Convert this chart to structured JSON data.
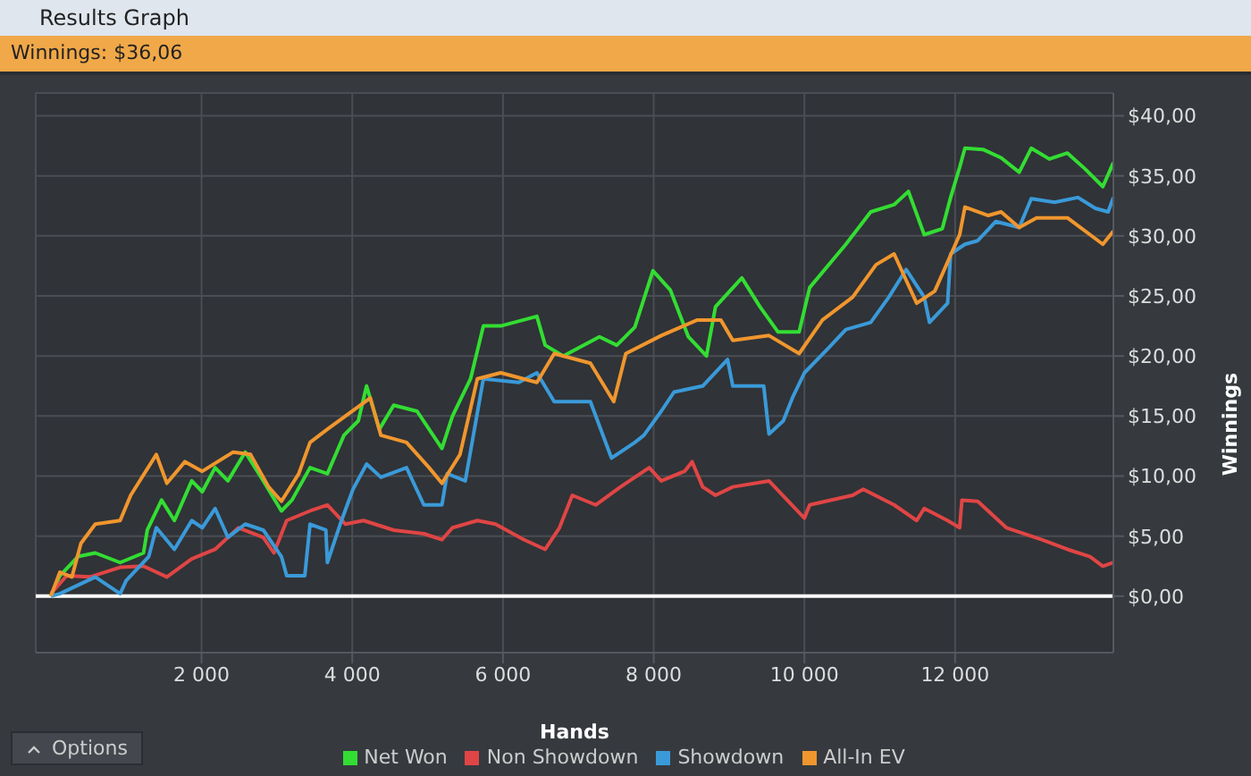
{
  "chart_data": {
    "type": "line",
    "title": "Results Graph",
    "subtitle": "Winnings: $36,06",
    "xlabel": "Hands",
    "ylabel": "Winnings",
    "annotations": [
      "Options"
    ],
    "xlim": [
      -200,
      14100
    ],
    "xticks": [
      {
        "value": 2000,
        "label": "2 000"
      },
      {
        "value": 4000,
        "label": "4 000"
      },
      {
        "value": 6000,
        "label": "6 000"
      },
      {
        "value": 8000,
        "label": "8 000"
      },
      {
        "value": 10000,
        "label": "10 000"
      },
      {
        "value": 12000,
        "label": "12 000"
      }
    ],
    "ylim": [
      -4.7,
      41.9
    ],
    "yticks": [
      {
        "value": 0,
        "label": "$0,00"
      },
      {
        "value": 5,
        "label": "$5,00"
      },
      {
        "value": 10,
        "label": "$10,00"
      },
      {
        "value": 15,
        "label": "$15,00"
      },
      {
        "value": 20,
        "label": "$20,00"
      },
      {
        "value": 25,
        "label": "$25,00"
      },
      {
        "value": 30,
        "label": "$30,00"
      },
      {
        "value": 35,
        "label": "$35,00"
      },
      {
        "value": 40,
        "label": "$40,00"
      }
    ],
    "grid": true,
    "legend": "bottom",
    "marker": "none",
    "line_style": "solid",
    "ref_lines": [
      {
        "axis": "y",
        "value": 0,
        "color": "#ffffff"
      }
    ],
    "series": [
      {
        "name": "Net Won",
        "color": "#33dd33",
        "x": [
          0,
          120,
          360,
          590,
          920,
          1230,
          1280,
          1470,
          1640,
          1870,
          2010,
          2180,
          2350,
          2580,
          2820,
          3060,
          3200,
          3440,
          3670,
          3890,
          4080,
          4190,
          4360,
          4550,
          4860,
          5190,
          5330,
          5570,
          5740,
          5970,
          6450,
          6560,
          6800,
          7280,
          7510,
          7750,
          7990,
          8220,
          8460,
          8700,
          8820,
          9170,
          9410,
          9650,
          9930,
          10070,
          10550,
          10880,
          11190,
          11380,
          11590,
          11830,
          11940,
          12060,
          12130,
          12370,
          12610,
          12850,
          13010,
          13250,
          13490,
          13720,
          13960,
          14100
        ],
        "values": [
          0,
          1.7,
          3.3,
          3.6,
          2.8,
          3.6,
          5.5,
          8.0,
          6.3,
          9.6,
          8.7,
          10.7,
          9.6,
          12.0,
          9.6,
          7.1,
          8.0,
          10.7,
          10.2,
          13.4,
          14.6,
          17.5,
          13.9,
          15.9,
          15.4,
          12.3,
          15.0,
          18.1,
          22.5,
          22.5,
          23.3,
          20.9,
          20.0,
          21.6,
          20.9,
          22.4,
          27.1,
          25.5,
          21.6,
          20.0,
          24.1,
          26.5,
          24.1,
          22.0,
          22.0,
          25.7,
          29.3,
          32.0,
          32.6,
          33.7,
          30.1,
          30.6,
          33.2,
          35.7,
          37.3,
          37.2,
          36.5,
          35.3,
          37.3,
          36.4,
          36.9,
          35.6,
          34.1,
          36.1
        ]
      },
      {
        "name": "Non Showdown",
        "color": "#e04545",
        "x": [
          0,
          210,
          520,
          920,
          1230,
          1540,
          1870,
          2180,
          2490,
          2820,
          2960,
          3130,
          3440,
          3670,
          3910,
          4150,
          4550,
          4950,
          5190,
          5330,
          5660,
          5900,
          6280,
          6560,
          6750,
          6920,
          7230,
          7560,
          7940,
          8100,
          8410,
          8510,
          8650,
          8820,
          9050,
          9530,
          10000,
          10070,
          10640,
          10780,
          11190,
          11490,
          11590,
          11900,
          12060,
          12090,
          12300,
          12680,
          13150,
          13490,
          13790,
          13960,
          14100
        ],
        "values": [
          0.2,
          1.7,
          1.6,
          2.4,
          2.5,
          1.6,
          3.1,
          3.9,
          5.7,
          4.9,
          3.6,
          6.3,
          7.1,
          7.6,
          6.0,
          6.3,
          5.5,
          5.2,
          4.7,
          5.7,
          6.3,
          6.0,
          4.7,
          3.9,
          5.7,
          8.4,
          7.6,
          9.1,
          10.7,
          9.6,
          10.4,
          11.2,
          9.1,
          8.4,
          9.1,
          9.6,
          6.5,
          7.6,
          8.4,
          8.9,
          7.6,
          6.3,
          7.3,
          6.3,
          5.7,
          8.0,
          7.9,
          5.7,
          4.7,
          3.9,
          3.3,
          2.5,
          2.8
        ]
      },
      {
        "name": "Showdown",
        "color": "#3a9ad9",
        "x": [
          0,
          120,
          590,
          920,
          1000,
          1300,
          1400,
          1640,
          1870,
          2010,
          2180,
          2350,
          2580,
          2820,
          3060,
          3130,
          3370,
          3440,
          3650,
          3670,
          3840,
          4010,
          4190,
          4380,
          4720,
          4950,
          5190,
          5260,
          5500,
          5740,
          6210,
          6450,
          6680,
          7160,
          7440,
          7750,
          7870,
          8100,
          8270,
          8650,
          8980,
          9050,
          9460,
          9530,
          9720,
          9840,
          10000,
          10310,
          10550,
          10880,
          11120,
          11350,
          11590,
          11660,
          11900,
          11940,
          12130,
          12300,
          12540,
          12850,
          13010,
          13320,
          13630,
          13860,
          14030,
          14100
        ],
        "values": [
          0,
          0.2,
          1.6,
          0.2,
          1.3,
          3.3,
          5.7,
          3.9,
          6.3,
          5.7,
          7.3,
          4.9,
          6.0,
          5.5,
          3.3,
          1.7,
          1.7,
          6.0,
          5.5,
          2.8,
          6.0,
          8.9,
          11.0,
          9.9,
          10.7,
          7.6,
          7.6,
          10.2,
          9.6,
          18.1,
          17.8,
          18.6,
          16.2,
          16.2,
          11.5,
          12.8,
          13.4,
          15.4,
          17.0,
          17.5,
          19.7,
          17.5,
          17.5,
          13.5,
          14.6,
          16.5,
          18.6,
          20.6,
          22.2,
          22.8,
          24.9,
          27.2,
          24.9,
          22.8,
          24.4,
          28.5,
          29.3,
          29.6,
          31.2,
          30.7,
          33.1,
          32.8,
          33.2,
          32.3,
          32.0,
          33.2
        ]
      },
      {
        "name": "All-In EV",
        "color": "#f0962e",
        "x": [
          0,
          120,
          280,
          400,
          590,
          920,
          1060,
          1400,
          1540,
          1780,
          2010,
          2420,
          2650,
          2890,
          3060,
          3290,
          3440,
          3670,
          3910,
          4240,
          4380,
          4720,
          5020,
          5190,
          5430,
          5660,
          5970,
          6450,
          6680,
          7160,
          7470,
          7630,
          8100,
          8580,
          8890,
          9050,
          9530,
          9930,
          10240,
          10640,
          10950,
          11190,
          11490,
          11730,
          12060,
          12130,
          12440,
          12610,
          12850,
          13080,
          13490,
          13790,
          13960,
          14100
        ],
        "values": [
          0,
          2.0,
          1.6,
          4.4,
          6.0,
          6.3,
          8.4,
          11.8,
          9.4,
          11.2,
          10.4,
          12.0,
          11.8,
          9.1,
          7.9,
          10.2,
          12.8,
          13.9,
          15.0,
          16.5,
          13.4,
          12.8,
          10.7,
          9.4,
          11.8,
          18.1,
          18.6,
          17.8,
          20.2,
          19.4,
          16.2,
          20.2,
          21.7,
          23.0,
          23.0,
          21.3,
          21.7,
          20.2,
          23.0,
          24.9,
          27.6,
          28.5,
          24.4,
          25.4,
          30.1,
          32.4,
          31.7,
          32.0,
          30.7,
          31.5,
          31.5,
          30.1,
          29.3,
          30.4
        ]
      }
    ]
  }
}
